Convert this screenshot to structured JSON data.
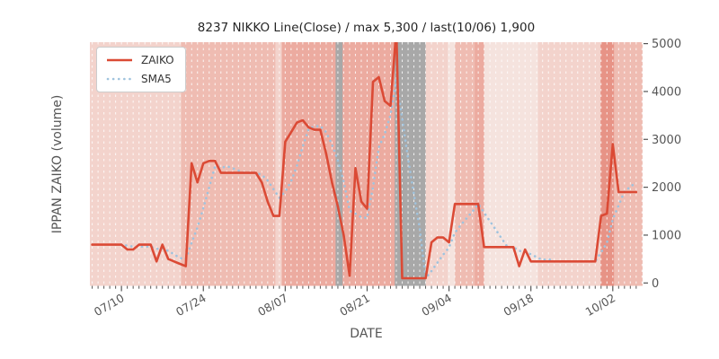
{
  "title": "8237 NIKKO Line(Close) / max 5,300 / last(10/06) 1,900",
  "chart_data": {
    "type": "line",
    "title": "8237 NIKKO Line(Close) / max 5,300 / last(10/06) 1,900",
    "xlabel": "DATE",
    "ylabel": "IPPAN ZAIKO (volume)",
    "y_axis_side": "right",
    "ylim": [
      -60,
      5030
    ],
    "y_ticks": [
      "0",
      "1000",
      "2000",
      "3000",
      "4000",
      "5000"
    ],
    "x_major_ticks": [
      {
        "index": 5,
        "label": "07/10"
      },
      {
        "index": 19,
        "label": "07/24"
      },
      {
        "index": 33,
        "label": "08/07"
      },
      {
        "index": 47,
        "label": "08/21"
      },
      {
        "index": 61,
        "label": "09/04"
      },
      {
        "index": 75,
        "label": "09/18"
      },
      {
        "index": 89,
        "label": "10/02"
      }
    ],
    "grid": "vertical-daily-white-dashed",
    "legend_position": "upper-left",
    "plot_bg_color": "#e3e3e3",
    "dates": [
      "07/05",
      "07/06",
      "07/07",
      "07/08",
      "07/09",
      "07/10",
      "07/11",
      "07/12",
      "07/13",
      "07/14",
      "07/15",
      "07/16",
      "07/17",
      "07/18",
      "07/19",
      "07/20",
      "07/21",
      "07/22",
      "07/23",
      "07/24",
      "07/25",
      "07/26",
      "07/27",
      "07/28",
      "07/29",
      "07/30",
      "07/31",
      "08/01",
      "08/02",
      "08/03",
      "08/04",
      "08/05",
      "08/06",
      "08/07",
      "08/08",
      "08/09",
      "08/10",
      "08/11",
      "08/12",
      "08/13",
      "08/14",
      "08/15",
      "08/16",
      "08/17",
      "08/18",
      "08/19",
      "08/20",
      "08/21",
      "08/22",
      "08/23",
      "08/24",
      "08/25",
      "08/26",
      "08/27",
      "08/28",
      "08/29",
      "08/30",
      "08/31",
      "09/01",
      "09/02",
      "09/03",
      "09/04",
      "09/05",
      "09/06",
      "09/07",
      "09/08",
      "09/09",
      "09/10",
      "09/11",
      "09/12",
      "09/13",
      "09/14",
      "09/15",
      "09/16",
      "09/17",
      "09/18",
      "09/19",
      "09/20",
      "09/21",
      "09/22",
      "09/23",
      "09/24",
      "09/25",
      "09/26",
      "09/27",
      "09/28",
      "09/29",
      "09/30",
      "10/01",
      "10/02",
      "10/03",
      "10/04",
      "10/05",
      "10/06"
    ],
    "series": [
      {
        "name": "ZAIKO",
        "style": "solid",
        "color": "#db4a35",
        "values": [
          800,
          800,
          800,
          800,
          800,
          800,
          700,
          700,
          800,
          800,
          800,
          450,
          800,
          500,
          450,
          400,
          350,
          2500,
          2100,
          2500,
          2550,
          2550,
          2300,
          2300,
          2300,
          2300,
          2300,
          2300,
          2300,
          2100,
          1700,
          1400,
          1400,
          2950,
          3150,
          3350,
          3400,
          3250,
          3200,
          3200,
          2700,
          2100,
          1600,
          1000,
          150,
          2400,
          1700,
          1550,
          4200,
          4300,
          3800,
          3700,
          5300,
          100,
          100,
          100,
          100,
          100,
          850,
          950,
          950,
          850,
          1650,
          1650,
          1650,
          1650,
          1650,
          750,
          750,
          750,
          750,
          750,
          750,
          350,
          700,
          450,
          450,
          450,
          450,
          450,
          450,
          450,
          450,
          450,
          450,
          450,
          450,
          1400,
          1450,
          2900,
          1900,
          1900,
          1900,
          1900
        ]
      },
      {
        "name": "SMA5",
        "style": "dotted",
        "color": "#9fc3de",
        "values": [
          null,
          null,
          null,
          null,
          800,
          800,
          780,
          760,
          760,
          760,
          760,
          710,
          730,
          670,
          600,
          520,
          500,
          840,
          1160,
          1570,
          2000,
          2440,
          2400,
          2440,
          2400,
          2350,
          2300,
          2300,
          2300,
          2260,
          2140,
          1960,
          1780,
          1910,
          2120,
          2450,
          2850,
          3220,
          3270,
          3280,
          3150,
          2890,
          2560,
          2120,
          1510,
          1450,
          1370,
          1360,
          2000,
          2830,
          3110,
          3510,
          4260,
          3440,
          2600,
          1860,
          1140,
          100,
          250,
          420,
          590,
          740,
          1050,
          1210,
          1350,
          1490,
          1650,
          1470,
          1290,
          1110,
          930,
          750,
          750,
          670,
          660,
          600,
          540,
          480,
          500,
          450,
          450,
          450,
          450,
          450,
          450,
          450,
          450,
          640,
          840,
          1330,
          1620,
          1910,
          2010,
          2100
        ]
      }
    ],
    "band_colors": {
      "xlight": "#f5e3de",
      "light": "#f3d3cc",
      "medium": "#efbcb2",
      "dark": "#ecaba0",
      "darker": "#e79386",
      "gray": "#a8a8a8"
    },
    "bands": [
      {
        "start": 0,
        "end": 15.7,
        "color": "light"
      },
      {
        "start": 15.7,
        "end": 31.8,
        "color": "medium"
      },
      {
        "start": 31.8,
        "end": 32.9,
        "color": "light"
      },
      {
        "start": 32.9,
        "end": 42.1,
        "color": "dark"
      },
      {
        "start": 42.1,
        "end": 43.3,
        "color": "gray"
      },
      {
        "start": 43.3,
        "end": 52.2,
        "color": "dark"
      },
      {
        "start": 52.2,
        "end": 57.5,
        "color": "gray"
      },
      {
        "start": 57.5,
        "end": 61.3,
        "color": "light"
      },
      {
        "start": 61.3,
        "end": 62.5,
        "color": "xlight"
      },
      {
        "start": 62.5,
        "end": 65.9,
        "color": "medium"
      },
      {
        "start": 65.9,
        "end": 67.5,
        "color": "dark"
      },
      {
        "start": 67.5,
        "end": 76.7,
        "color": "xlight"
      },
      {
        "start": 76.7,
        "end": 87.4,
        "color": "light"
      },
      {
        "start": 87.4,
        "end": 89.7,
        "color": "darker"
      },
      {
        "start": 89.7,
        "end": 93.6,
        "color": "medium"
      }
    ]
  }
}
